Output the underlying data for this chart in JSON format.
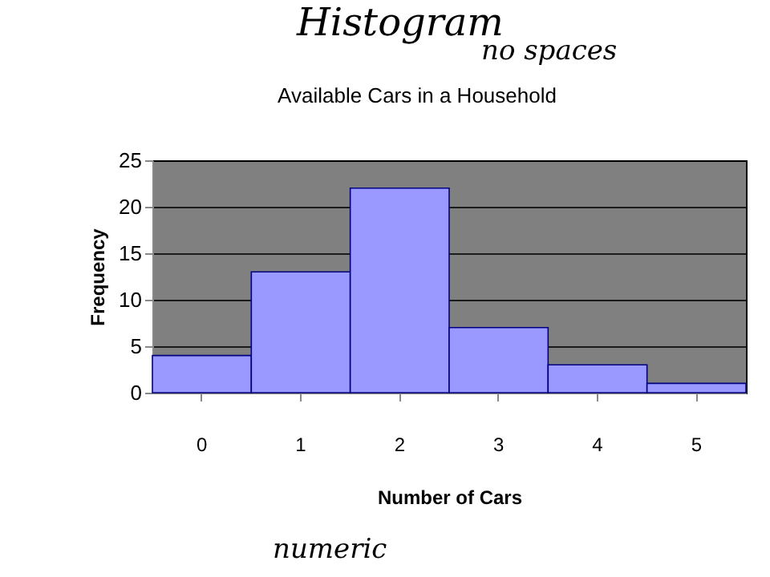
{
  "chart_data": {
    "type": "bar",
    "title": "Available Cars in a Household",
    "xlabel": "Number of Cars",
    "ylabel": "Frequency",
    "categories": [
      "0",
      "1",
      "2",
      "3",
      "4",
      "5"
    ],
    "series": [
      {
        "color": "#9999ff",
        "values": [
          4,
          13,
          22,
          7,
          3,
          1
        ]
      }
    ],
    "ylim": [
      0,
      25
    ],
    "yticks": [
      0,
      5,
      10,
      15,
      20,
      25
    ],
    "grid": "y",
    "annotations": [
      "Histogram",
      "no spaces",
      "numeric"
    ]
  }
}
